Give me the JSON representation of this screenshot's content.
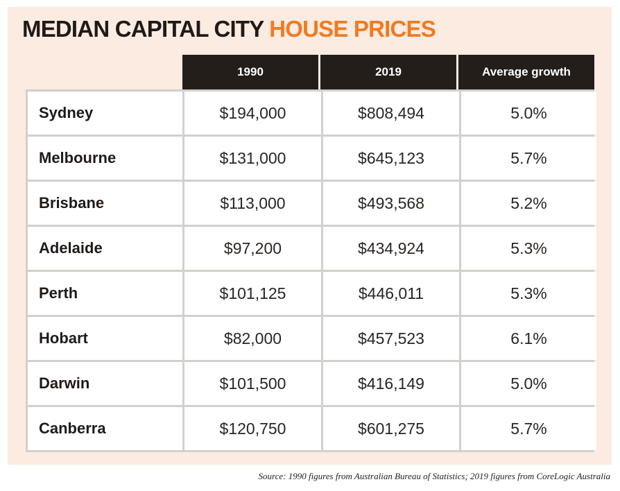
{
  "title": {
    "part1": "MEDIAN CAPITAL CITY ",
    "part2": "HOUSE PRICES"
  },
  "colors": {
    "panel_background": "#fcebe0",
    "title_dark": "#1f1a17",
    "title_accent": "#ef7b22",
    "header_background": "#241e1b",
    "grid_lines": "#d2d0cd"
  },
  "chart_data": {
    "type": "table",
    "title": "MEDIAN CAPITAL CITY HOUSE PRICES",
    "columns": [
      "",
      "1990",
      "2019",
      "Average growth"
    ],
    "rows": [
      {
        "city": "Sydney",
        "y1990": "$194,000",
        "y2019": "$808,494",
        "growth": "5.0%"
      },
      {
        "city": "Melbourne",
        "y1990": "$131,000",
        "y2019": "$645,123",
        "growth": "5.7%"
      },
      {
        "city": "Brisbane",
        "y1990": "$113,000",
        "y2019": "$493,568",
        "growth": "5.2%"
      },
      {
        "city": "Adelaide",
        "y1990": "$97,200",
        "y2019": "$434,924",
        "growth": "5.3%"
      },
      {
        "city": "Perth",
        "y1990": "$101,125",
        "y2019": "$446,011",
        "growth": "5.3%"
      },
      {
        "city": "Hobart",
        "y1990": "$82,000",
        "y2019": "$457,523",
        "growth": "6.1%"
      },
      {
        "city": "Darwin",
        "y1990": "$101,500",
        "y2019": "$416,149",
        "growth": "5.0%"
      },
      {
        "city": "Canberra",
        "y1990": "$120,750",
        "y2019": "$601,275",
        "growth": "5.7%"
      }
    ]
  },
  "source": "Source: 1990 figures from Australian Bureau of Statistics; 2019 figures from CoreLogic Australia"
}
